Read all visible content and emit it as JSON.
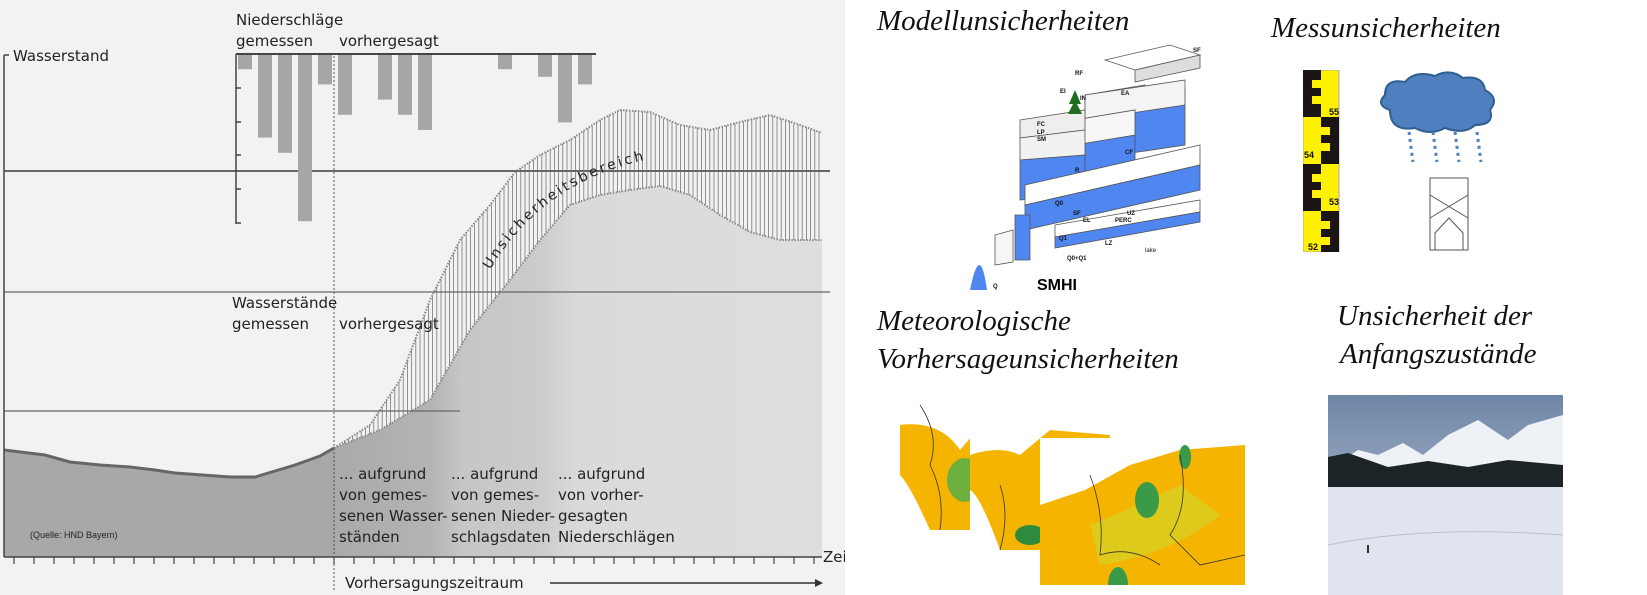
{
  "left_diagram": {
    "y_axis_label": "Wasserstand",
    "precip_title": "Niederschläge",
    "precip_measured": "gemessen",
    "precip_forecast": "vorhergesagt",
    "precip_values_measured": [
      1,
      5.5,
      6.5,
      11,
      2
    ],
    "precip_values_forecast": [
      4,
      0,
      3,
      4,
      5,
      0,
      0,
      0,
      1,
      0,
      1.5,
      4.5,
      2
    ],
    "levels_title": "Wasserstände",
    "levels_measured": "gemessen",
    "levels_forecast": "vorhergesagt",
    "band_label": "Unsicherheitsbereich",
    "phase_1": [
      "... aufgrund",
      "von gemes-",
      "senen Wasser-",
      "ständen"
    ],
    "phase_2": [
      "... aufgrund",
      "von gemes-",
      "senen Nieder-",
      "schlagsdaten"
    ],
    "phase_3": [
      "... aufgrund",
      "von vorher-",
      "gesagten",
      "Niederschlägen"
    ],
    "source": "(Quelle: HND Bayern)",
    "x_axis_label": "Zeit",
    "forecast_period": "Vorhersagungszeitraum"
  },
  "right_panels": {
    "model": {
      "title": "Modellunsicherheiten",
      "logo": "SMHI",
      "labels": [
        "SF",
        "RF",
        "EI",
        "IN",
        "EA",
        "FC",
        "LP",
        "SM",
        "CF",
        "R",
        "UZ",
        "Q0",
        "SF",
        "EL",
        "PERC",
        "LZ",
        "Q1",
        "Q0+Q1",
        "Q",
        "lake"
      ]
    },
    "measurement": {
      "title": "Messunsicherheiten",
      "gauge_marks": [
        "55",
        "54",
        "53",
        "52"
      ]
    },
    "meteo": {
      "title_line1": "Meteorologische",
      "title_line2": "Vorhersageunsicherheiten"
    },
    "initial": {
      "title_line1": "Unsicherheit der",
      "title_line2": "Anfangszustände"
    }
  },
  "colors": {
    "panel_bg": "#f2f2f2",
    "bar": "#a6a6a6",
    "water_blue": "#4f86f0",
    "gauge_yellow": "#fff200",
    "cloud": "#4f7fbf",
    "map_orange": "#f5b400"
  }
}
